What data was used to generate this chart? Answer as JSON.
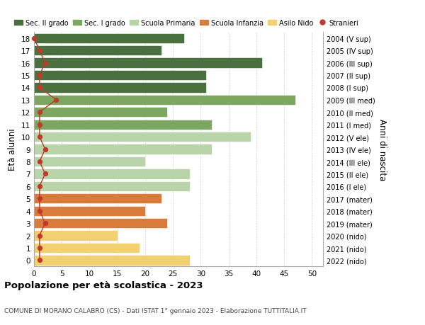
{
  "ages": [
    18,
    17,
    16,
    15,
    14,
    13,
    12,
    11,
    10,
    9,
    8,
    7,
    6,
    5,
    4,
    3,
    2,
    1,
    0
  ],
  "right_labels": [
    "2004 (V sup)",
    "2005 (IV sup)",
    "2006 (III sup)",
    "2007 (II sup)",
    "2008 (I sup)",
    "2009 (III med)",
    "2010 (II med)",
    "2011 (I med)",
    "2012 (V ele)",
    "2013 (IV ele)",
    "2014 (III ele)",
    "2015 (II ele)",
    "2016 (I ele)",
    "2017 (mater)",
    "2018 (mater)",
    "2019 (mater)",
    "2020 (nido)",
    "2021 (nido)",
    "2022 (nido)"
  ],
  "bar_values": [
    27,
    23,
    41,
    31,
    31,
    47,
    24,
    32,
    39,
    32,
    20,
    28,
    28,
    23,
    20,
    24,
    15,
    19,
    28
  ],
  "bar_colors": [
    "#4a7040",
    "#4a7040",
    "#4a7040",
    "#4a7040",
    "#4a7040",
    "#7da660",
    "#7da660",
    "#7da660",
    "#b8d4a8",
    "#b8d4a8",
    "#b8d4a8",
    "#b8d4a8",
    "#b8d4a8",
    "#d97b3a",
    "#d97b3a",
    "#d97b3a",
    "#f0d070",
    "#f0d070",
    "#f0d070"
  ],
  "stranieri_values": [
    0,
    1,
    2,
    1,
    1,
    4,
    1,
    1,
    1,
    2,
    1,
    2,
    1,
    1,
    1,
    2,
    1,
    1,
    1
  ],
  "legend_labels": [
    "Sec. II grado",
    "Sec. I grado",
    "Scuola Primaria",
    "Scuola Infanzia",
    "Asilo Nido",
    "Stranieri"
  ],
  "legend_colors": [
    "#4a7040",
    "#7da660",
    "#b8d4a8",
    "#d97b3a",
    "#f0d070",
    "#c0392b"
  ],
  "ylabel_left": "Età alunni",
  "ylabel_right": "Anni di nascita",
  "title": "Popolazione per età scolastica - 2023",
  "subtitle": "COMUNE DI MORANO CALABRO (CS) - Dati ISTAT 1° gennaio 2023 - Elaborazione TUTTITALIA.IT",
  "xlim": [
    0,
    52
  ],
  "xticks": [
    0,
    5,
    10,
    15,
    20,
    25,
    30,
    35,
    40,
    45,
    50
  ],
  "bg_color": "#ffffff",
  "grid_color": "#cccccc",
  "stranieri_color": "#c0392b"
}
